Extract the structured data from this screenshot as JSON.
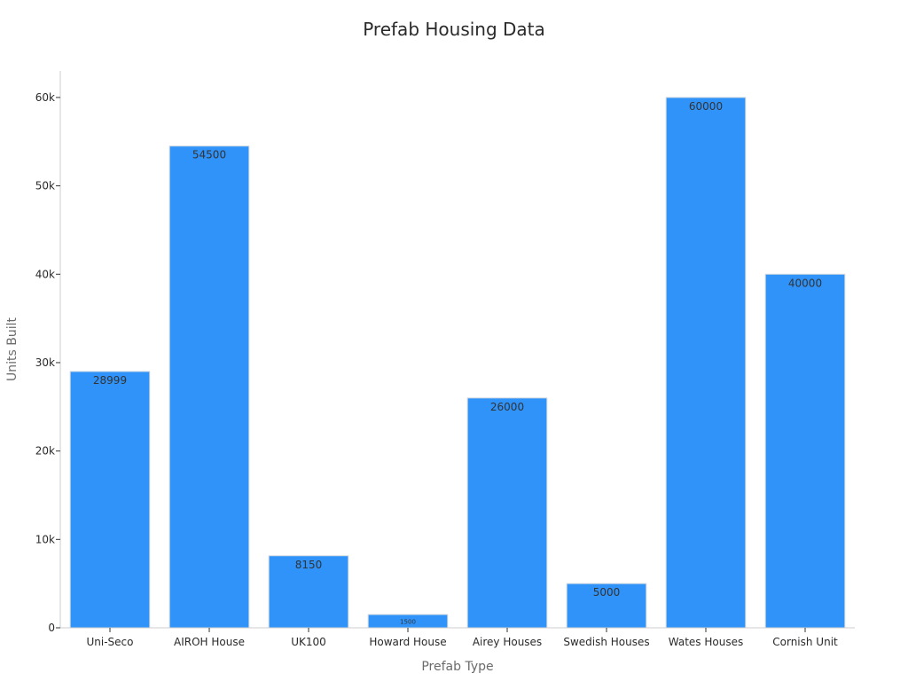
{
  "chart_data": {
    "type": "bar",
    "title": "Prefab Housing Data",
    "xlabel": "Prefab Type",
    "ylabel": "Units Built",
    "categories": [
      "Uni-Seco",
      "AIROH House",
      "UK100",
      "Howard House",
      "Airey Houses",
      "Swedish Houses",
      "Wates Houses",
      "Cornish Unit"
    ],
    "values": [
      28999,
      54500,
      8150,
      1500,
      26000,
      5000,
      60000,
      40000
    ],
    "data_labels": [
      "28999",
      "54500",
      "8150",
      "1500",
      "26000",
      "5000",
      "60000",
      "40000"
    ],
    "ylim": [
      0,
      63000
    ],
    "yticks": [
      0,
      10000,
      20000,
      30000,
      40000,
      50000,
      60000
    ],
    "ytick_labels": [
      "0",
      "10k",
      "20k",
      "30k",
      "40k",
      "50k",
      "60k"
    ],
    "grid": false,
    "legend": "none",
    "bar_color": "#2f93fa"
  }
}
